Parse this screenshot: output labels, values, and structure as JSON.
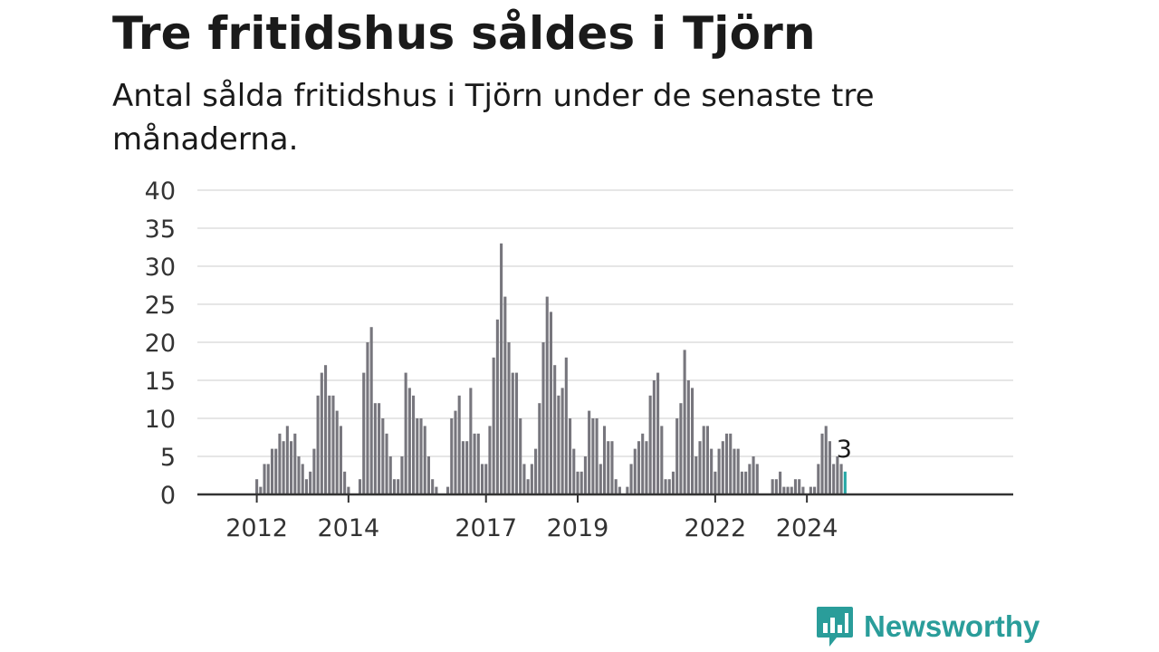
{
  "header": {
    "title": "Tre fritidshus såldes i Tjörn",
    "subtitle": "Antal sålda fritidshus i Tjörn under de senaste tre månaderna."
  },
  "brand": {
    "name": "Newsworthy",
    "logo_icon": "bar-chart-speech-bubble-icon",
    "color": "#2a9d9a"
  },
  "colors": {
    "bar": "#77767d",
    "highlight": "#26a7a5",
    "grid": "#dddddd",
    "axis": "#333333"
  },
  "chart_data": {
    "type": "bar",
    "title": "Tre fritidshus såldes i Tjörn",
    "subtitle": "Antal sålda fritidshus i Tjörn under de senaste tre månaderna.",
    "x_start": "2011-08",
    "x_interval": "month",
    "ylim": [
      0,
      40
    ],
    "y_ticks": [
      0,
      5,
      10,
      15,
      20,
      25,
      30,
      35,
      40
    ],
    "x_tick_labels": [
      {
        "label": "2012",
        "date": "2012-01"
      },
      {
        "label": "2014",
        "date": "2014-01"
      },
      {
        "label": "2017",
        "date": "2017-01"
      },
      {
        "label": "2019",
        "date": "2019-01"
      },
      {
        "label": "2022",
        "date": "2022-01"
      },
      {
        "label": "2024",
        "date": "2024-01"
      }
    ],
    "grid": true,
    "legend": "none",
    "values": [
      0,
      0,
      0,
      0,
      0,
      2,
      1,
      4,
      4,
      6,
      6,
      8,
      7,
      9,
      7,
      8,
      5,
      4,
      2,
      3,
      6,
      13,
      16,
      17,
      13,
      13,
      11,
      9,
      3,
      1,
      0,
      0,
      2,
      16,
      20,
      22,
      12,
      12,
      10,
      8,
      5,
      2,
      2,
      5,
      16,
      14,
      13,
      10,
      10,
      9,
      5,
      2,
      1,
      0,
      0,
      1,
      10,
      11,
      13,
      7,
      7,
      14,
      8,
      8,
      4,
      4,
      9,
      18,
      23,
      33,
      26,
      20,
      16,
      16,
      10,
      4,
      2,
      4,
      6,
      12,
      20,
      26,
      24,
      17,
      13,
      14,
      18,
      10,
      6,
      3,
      3,
      5,
      11,
      10,
      10,
      4,
      9,
      7,
      7,
      2,
      1,
      0,
      1,
      4,
      6,
      7,
      8,
      7,
      13,
      15,
      16,
      9,
      2,
      2,
      3,
      10,
      12,
      19,
      15,
      14,
      5,
      7,
      9,
      9,
      6,
      3,
      6,
      7,
      8,
      8,
      6,
      6,
      3,
      3,
      4,
      5,
      4,
      0,
      0,
      0,
      2,
      2,
      3,
      1,
      1,
      1,
      2,
      2,
      1,
      0,
      1,
      1,
      4,
      8,
      9,
      7,
      4,
      5,
      4,
      3
    ],
    "highlight_index": 159,
    "highlight_label": "3"
  }
}
